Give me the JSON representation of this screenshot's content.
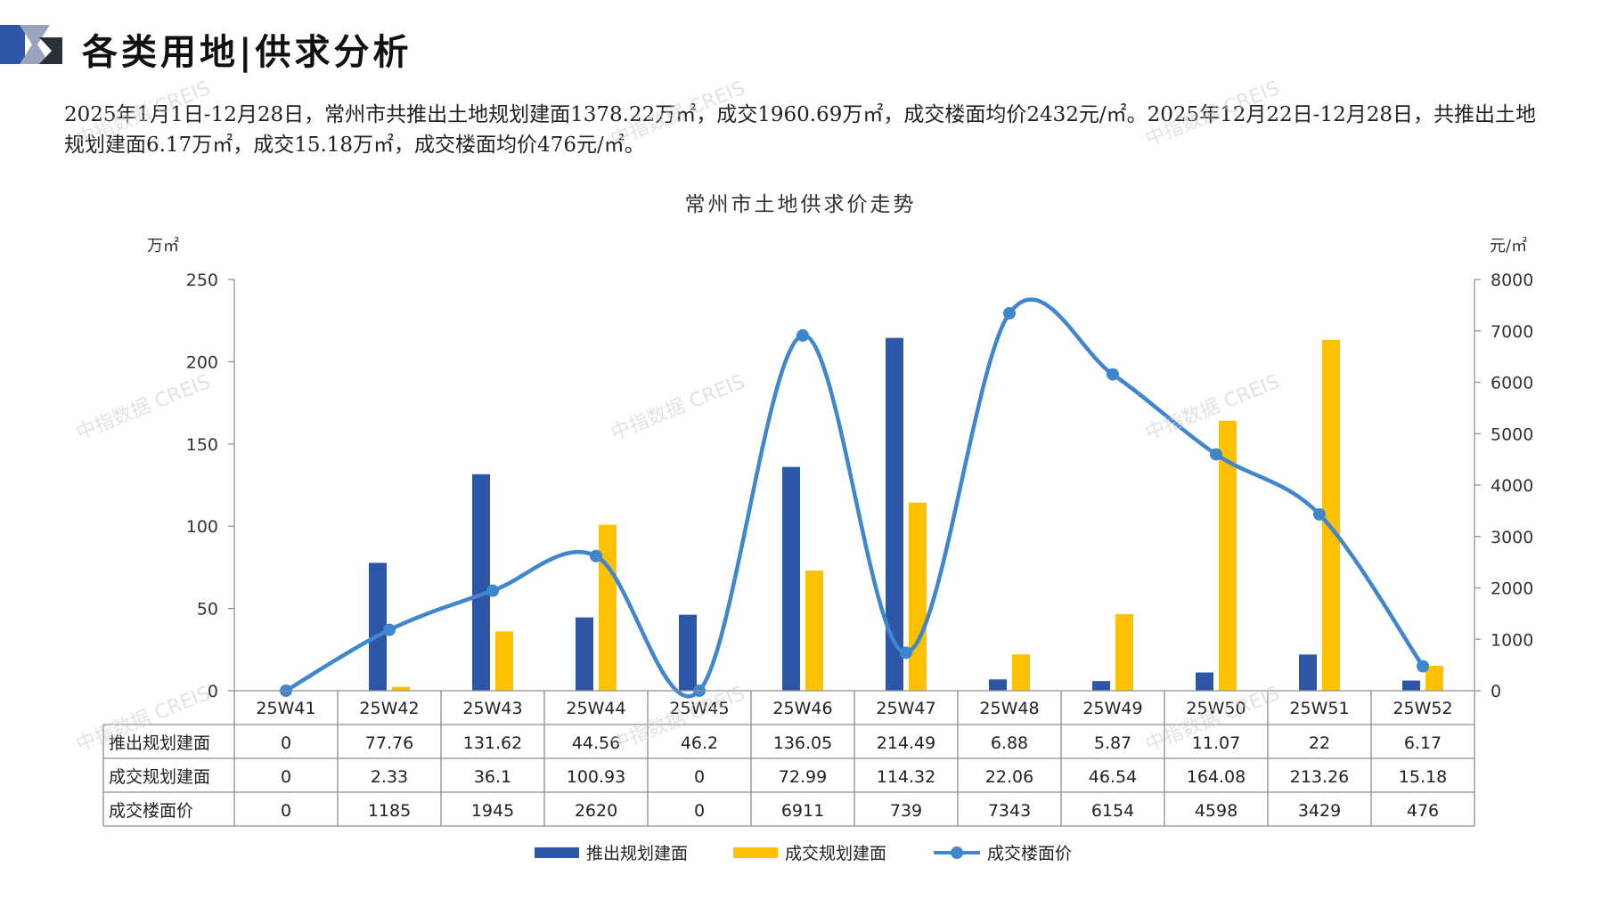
{
  "header": {
    "title": "各类用地|供求分析"
  },
  "summary": {
    "text": "2025年1月1日-12月28日，常州市共推出土地规划建面1378.22万㎡，成交1960.69万㎡，成交楼面均价2432元/㎡。2025年12月22日-12月28日，共推出土地规划建面6.17万㎡，成交15.18万㎡，成交楼面均价476元/㎡。"
  },
  "watermark": "中指数据 CREIS",
  "colors": {
    "supply": "#2E56A6",
    "deal": "#FFC000",
    "price": "#3F86CF",
    "grid_axis": "#888888",
    "table_border": "#8c8c8c"
  },
  "chart_data": {
    "type": "bar",
    "title": "常州市土地供求价走势",
    "categories": [
      "25W41",
      "25W42",
      "25W43",
      "25W44",
      "25W45",
      "25W46",
      "25W47",
      "25W48",
      "25W49",
      "25W50",
      "25W51",
      "25W52"
    ],
    "y_left": {
      "unit": "万㎡",
      "min": 0,
      "max": 250,
      "ticks": [
        0,
        50,
        100,
        150,
        200,
        250
      ]
    },
    "y_right": {
      "unit": "元/㎡",
      "min": 0,
      "max": 8000,
      "ticks": [
        0,
        1000,
        2000,
        3000,
        4000,
        5000,
        6000,
        7000,
        8000
      ]
    },
    "series": [
      {
        "name": "推出规划建面",
        "kind": "bar",
        "axis": "left",
        "values": [
          0,
          77.76,
          131.62,
          44.56,
          46.2,
          136.05,
          214.49,
          6.88,
          5.87,
          11.07,
          22,
          6.17
        ],
        "labels": [
          "0",
          "77.76",
          "131.62",
          "44.56",
          "46.2",
          "136.05",
          "214.49",
          "6.88",
          "5.87",
          "11.07",
          "22",
          "6.17"
        ]
      },
      {
        "name": "成交规划建面",
        "kind": "bar",
        "axis": "left",
        "values": [
          0,
          2.33,
          36.1,
          100.93,
          0,
          72.99,
          114.32,
          22.06,
          46.54,
          164.08,
          213.26,
          15.18
        ],
        "labels": [
          "0",
          "2.33",
          "36.1",
          "100.93",
          "0",
          "72.99",
          "114.32",
          "22.06",
          "46.54",
          "164.08",
          "213.26",
          "15.18"
        ]
      },
      {
        "name": "成交楼面价",
        "kind": "line",
        "axis": "right",
        "values": [
          0,
          1185,
          1945,
          2620,
          0,
          6911,
          739,
          7343,
          6154,
          4598,
          3429,
          476
        ],
        "labels": [
          "0",
          "1185",
          "1945",
          "2620",
          "0",
          "6911",
          "739",
          "7343",
          "6154",
          "4598",
          "3429",
          "476"
        ]
      }
    ],
    "legend_position": "bottom",
    "grid": false,
    "data_table": true
  }
}
